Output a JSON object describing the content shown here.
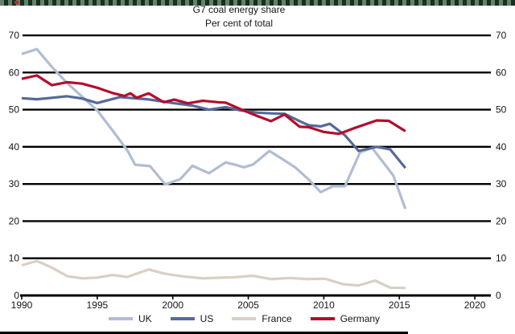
{
  "window": {
    "top_bar_color": "#16301f",
    "top_bar_dash_color": "#a3c4ac",
    "top_bar_accent_color": "#c0272c",
    "bottom_bar_color": "#000000"
  },
  "chart_data": {
    "type": "line",
    "title": "G7 coal energy share",
    "subtitle": "Per cent of total",
    "xlabel": "",
    "ylabel": "",
    "x_range": [
      1990,
      2021
    ],
    "ylim": [
      0,
      70
    ],
    "x_ticks": [
      1990,
      1995,
      2000,
      2005,
      2010,
      2015,
      2020
    ],
    "y_ticks": [
      0,
      10,
      20,
      30,
      40,
      50,
      60,
      70
    ],
    "grid": "horizontal black gridlines at every 10, labels on both sides",
    "grid_color": "#000000",
    "axis_color": "#000000",
    "text_color": "#161616",
    "legend_position": "bottom",
    "series": [
      {
        "name": "UK",
        "color": "#b0bdd3",
        "points": [
          [
            1990,
            65.0
          ],
          [
            1991,
            66.3
          ],
          [
            1992,
            61.5
          ],
          [
            1993,
            57.2
          ],
          [
            1994,
            53.5
          ],
          [
            1995,
            49.8
          ],
          [
            1996,
            44.5
          ],
          [
            1997,
            39.0
          ],
          [
            1997.5,
            35.2
          ],
          [
            1998.5,
            34.8
          ],
          [
            1999.5,
            29.9
          ],
          [
            2000.5,
            31.3
          ],
          [
            2001.3,
            34.9
          ],
          [
            2002.4,
            32.9
          ],
          [
            2003.5,
            35.8
          ],
          [
            2004.1,
            35.2
          ],
          [
            2004.7,
            34.5
          ],
          [
            2005.3,
            35.2
          ],
          [
            2006.4,
            38.9
          ],
          [
            2007.3,
            36.6
          ],
          [
            2008.1,
            34.5
          ],
          [
            2009,
            31.2
          ],
          [
            2009.8,
            27.8
          ],
          [
            2010.6,
            29.4
          ],
          [
            2011.4,
            29.4
          ],
          [
            2012.4,
            38.5
          ],
          [
            2013.2,
            39.7
          ],
          [
            2013.9,
            36.0
          ],
          [
            2014.6,
            32.3
          ],
          [
            2015.4,
            23.3
          ]
        ]
      },
      {
        "name": "US",
        "color": "#56699a",
        "points": [
          [
            1990,
            53.1
          ],
          [
            1991,
            52.8
          ],
          [
            1992,
            53.2
          ],
          [
            1993,
            53.6
          ],
          [
            1994,
            53.0
          ],
          [
            1995,
            51.8
          ],
          [
            1996.5,
            53.4
          ],
          [
            1997.4,
            53.1
          ],
          [
            1998.3,
            52.8
          ],
          [
            1999,
            52.4
          ],
          [
            2000,
            51.8
          ],
          [
            2001.3,
            51.1
          ],
          [
            2002.4,
            50.0
          ],
          [
            2003.5,
            50.7
          ],
          [
            2004.5,
            49.8
          ],
          [
            2005.6,
            49.2
          ],
          [
            2006.5,
            49.0
          ],
          [
            2007.4,
            48.9
          ],
          [
            2008.4,
            46.9
          ],
          [
            2009,
            45.8
          ],
          [
            2009.8,
            45.5
          ],
          [
            2010.4,
            46.2
          ],
          [
            2011.4,
            43.1
          ],
          [
            2012.3,
            38.9
          ],
          [
            2013.5,
            40.0
          ],
          [
            2014.4,
            39.3
          ],
          [
            2015.4,
            34.3
          ]
        ]
      },
      {
        "name": "France",
        "color": "#d8d0c3",
        "points": [
          [
            1990,
            8.1
          ],
          [
            1991,
            9.3
          ],
          [
            1992,
            7.5
          ],
          [
            1993,
            5.2
          ],
          [
            1994,
            4.6
          ],
          [
            1995,
            4.8
          ],
          [
            1996,
            5.5
          ],
          [
            1997,
            5.0
          ],
          [
            1998.4,
            7.0
          ],
          [
            1999.3,
            6.0
          ],
          [
            2000,
            5.5
          ],
          [
            2001,
            5.0
          ],
          [
            2002,
            4.6
          ],
          [
            2003.2,
            4.8
          ],
          [
            2004,
            4.9
          ],
          [
            2005.3,
            5.3
          ],
          [
            2006.5,
            4.4
          ],
          [
            2007.8,
            4.7
          ],
          [
            2008.9,
            4.4
          ],
          [
            2010.1,
            4.5
          ],
          [
            2011.3,
            3.0
          ],
          [
            2012.3,
            2.7
          ],
          [
            2013.4,
            4.0
          ],
          [
            2014.4,
            2.1
          ],
          [
            2015.4,
            2.0
          ]
        ]
      },
      {
        "name": "Germany",
        "color": "#b10e2d",
        "points": [
          [
            1990,
            58.3
          ],
          [
            1991,
            59.2
          ],
          [
            1992,
            56.6
          ],
          [
            1993,
            57.4
          ],
          [
            1994,
            57.0
          ],
          [
            1995,
            55.9
          ],
          [
            1996,
            54.5
          ],
          [
            1996.8,
            53.7
          ],
          [
            1997.2,
            54.4
          ],
          [
            1997.6,
            53.2
          ],
          [
            1998.4,
            54.4
          ],
          [
            1999.4,
            52.0
          ],
          [
            2000.1,
            52.7
          ],
          [
            2001,
            51.7
          ],
          [
            2002,
            52.4
          ],
          [
            2003,
            52.0
          ],
          [
            2003.5,
            51.9
          ],
          [
            2004.5,
            50.1
          ],
          [
            2005.6,
            48.3
          ],
          [
            2006.5,
            46.9
          ],
          [
            2007.4,
            48.7
          ],
          [
            2008.4,
            45.4
          ],
          [
            2009,
            45.3
          ],
          [
            2010,
            44.0
          ],
          [
            2011,
            43.5
          ],
          [
            2012,
            45.0
          ],
          [
            2013.5,
            47.1
          ],
          [
            2014.3,
            47.0
          ],
          [
            2015.4,
            44.2
          ]
        ]
      }
    ]
  }
}
